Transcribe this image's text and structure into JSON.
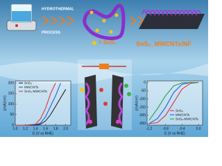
{
  "header": {
    "step1": "HYDROTHERMAL",
    "step2": "PROCESS",
    "sns2_key": "= SnS₂",
    "product": "SnS₂_MWCNTs/NF"
  },
  "chart_data": [
    {
      "type": "line",
      "xlabel": "E (V vs RHE)",
      "ylabel": "j(mA/cm²)",
      "x": [
        1.0,
        1.2,
        1.4,
        1.5,
        1.6,
        1.7,
        1.8,
        1.9,
        2.0
      ],
      "series": [
        {
          "name": "SnS₂",
          "color": "#111111",
          "values": [
            0,
            0,
            0,
            5,
            20,
            50,
            90,
            130,
            170
          ]
        },
        {
          "name": "MWCNTs",
          "color": "#1f4fd8",
          "values": [
            0,
            0,
            2,
            10,
            40,
            90,
            140,
            200,
            null
          ]
        },
        {
          "name": "SnS₂-MWCNTs",
          "color": "#e0262a",
          "values": [
            0,
            0,
            5,
            30,
            80,
            150,
            200,
            null,
            null
          ]
        }
      ],
      "xlim": [
        1.0,
        2.1
      ],
      "ylim": [
        0,
        210
      ],
      "xticks": [
        {
          "value": 1.0,
          "label": "1.0"
        },
        1.2,
        1.4,
        1.6,
        1.8,
        {
          "value": 2.0,
          "label": "2.0"
        }
      ],
      "yticks": [
        0,
        50,
        100,
        150,
        200
      ]
    },
    {
      "type": "line",
      "xlabel": "E (V vs RHE)",
      "ylabel": "j(mA/cm²)",
      "x": [
        -1.2,
        -1.0,
        -0.8,
        -0.6,
        -0.4,
        -0.2,
        0.0
      ],
      "series": [
        {
          "name": "SnS₂",
          "color": "#e0262a",
          "values": [
            -250,
            -245,
            -200,
            -120,
            -40,
            -5,
            0
          ]
        },
        {
          "name": "MWCNTs",
          "color": "#1f4fd8",
          "values": [
            -250,
            -220,
            -150,
            -60,
            -10,
            0,
            0
          ]
        },
        {
          "name": "SnS₂-MWCNTs",
          "color": "#1a9a3a",
          "values": [
            -230,
            -160,
            -80,
            -20,
            -2,
            0,
            0
          ]
        }
      ],
      "xlim": [
        -1.25,
        0.1
      ],
      "ylim": [
        -260,
        10
      ],
      "xticks": [
        -1.2,
        -0.8,
        -0.4,
        {
          "value": 0.0,
          "label": "0.0"
        }
      ],
      "yticks": [
        0,
        -50,
        -100,
        -150,
        -200,
        -250
      ]
    }
  ]
}
